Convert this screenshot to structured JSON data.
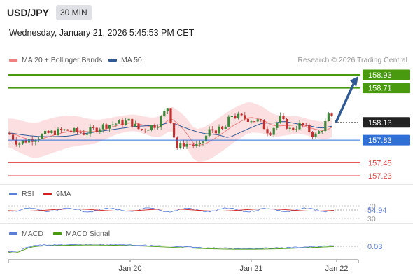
{
  "header": {
    "symbol": "USD/JPY",
    "timeframe": "30 MIN",
    "datetime": "Wednesday, January 21, 2026 5:45:53 PM CET",
    "credit": "Research © 2026 Trading Central"
  },
  "legend": {
    "ma20": "MA 20 + Bollinger Bands",
    "ma50": "MA 50",
    "rsi": "RSI",
    "ninema": "9MA",
    "macd": "MACD",
    "macd_signal": "MACD Signal"
  },
  "colors": {
    "ma20": "#f08080",
    "band_fill": "#fbd9db",
    "ma50": "#2f5a96",
    "bull": "#3a8a3a",
    "bear": "#c43030",
    "resistance": "#4a9a10",
    "support": "#2f6fd6",
    "support_red": "#e04040",
    "current": "#222222",
    "arrow": "#2f5a96",
    "rsi": "#5b7fd6",
    "ninema": "#d22020",
    "macd": "#5b7fd6",
    "macd_signal": "#4a9a10"
  },
  "chart_data": [
    {
      "type": "candlestick",
      "title": "USD/JPY 30 MIN",
      "x_ticks": [
        "Jan 20",
        "Jan 21",
        "Jan 22"
      ],
      "y_levels": [
        {
          "value": 158.93,
          "label": "158.93",
          "kind": "resistance"
        },
        {
          "value": 158.71,
          "label": "158.71",
          "kind": "resistance"
        },
        {
          "value": 158.13,
          "label": "158.13",
          "kind": "current"
        },
        {
          "value": 157.83,
          "label": "157.83",
          "kind": "pivot"
        },
        {
          "value": 157.45,
          "label": "157.45",
          "kind": "support"
        },
        {
          "value": 157.23,
          "label": "157.23",
          "kind": "support"
        }
      ],
      "forecast_target": 158.93,
      "series": [
        {
          "name": "MA 20 + Bollinger Bands"
        },
        {
          "name": "MA 50"
        }
      ]
    },
    {
      "type": "line",
      "title": "RSI",
      "y_ticks": [
        "70",
        "30"
      ],
      "current_label": "54.94",
      "series": [
        {
          "name": "RSI"
        },
        {
          "name": "9MA"
        }
      ]
    },
    {
      "type": "line",
      "title": "MACD",
      "current_label": "0.03",
      "series": [
        {
          "name": "MACD"
        },
        {
          "name": "MACD Signal"
        }
      ]
    }
  ]
}
